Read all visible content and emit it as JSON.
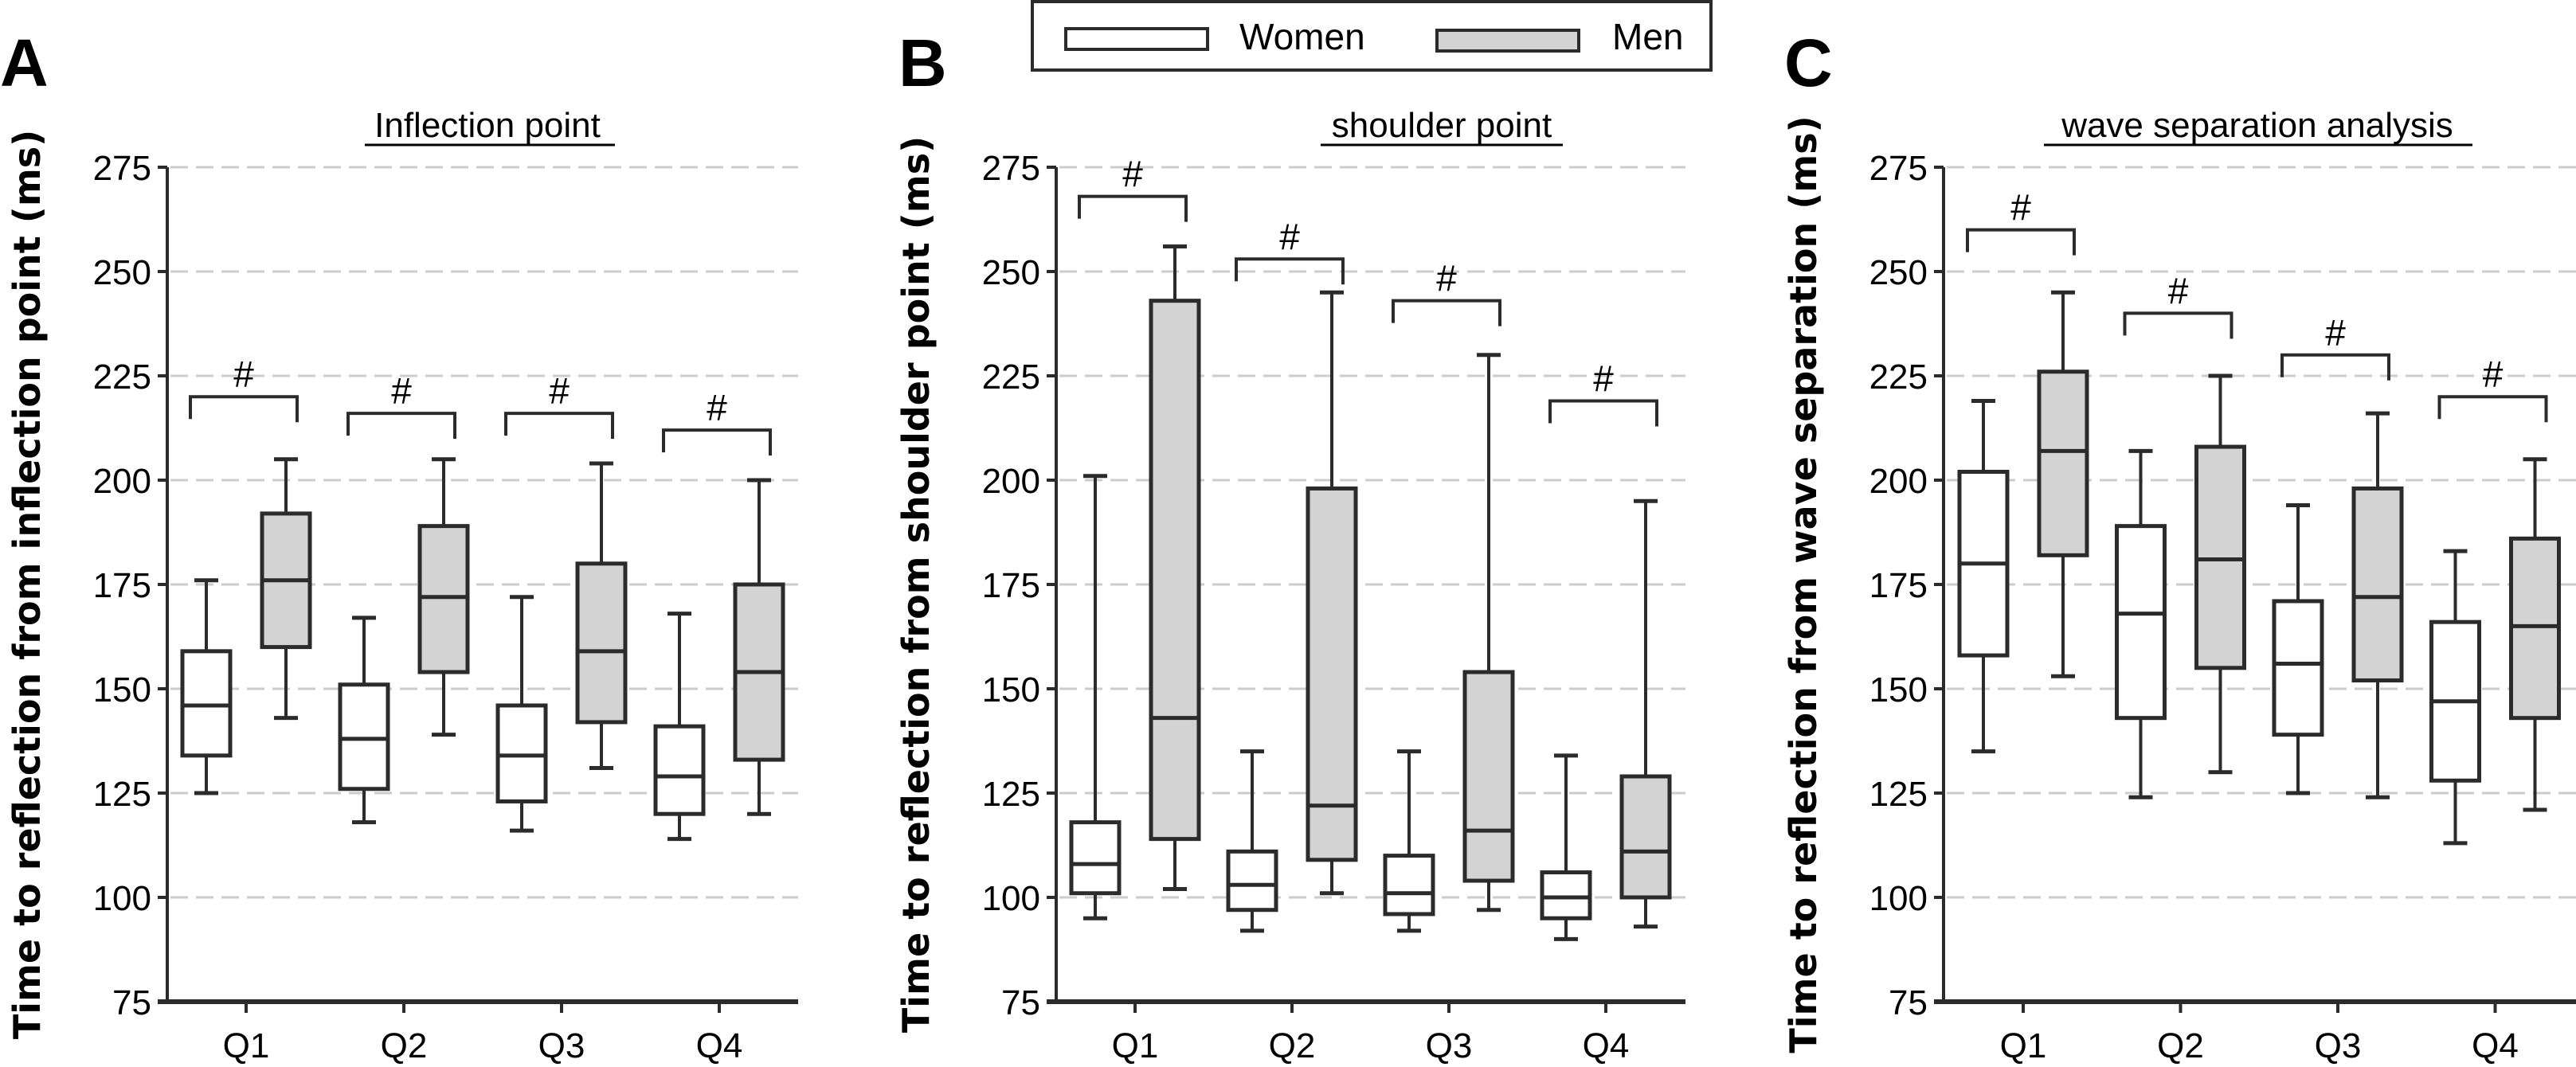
{
  "legend": {
    "items": [
      {
        "label": "Women",
        "fill": "#ffffff"
      },
      {
        "label": "Men",
        "fill": "#d3d3d3"
      }
    ]
  },
  "colors": {
    "stroke": "#2b2b2b",
    "grid": "#cccccc",
    "women": "#ffffff",
    "men": "#d3d3d3"
  },
  "chart_data": [
    {
      "type": "box",
      "panel": "A",
      "title": "Inflection point",
      "xlabel": "",
      "ylabel": "Time to reflection from inflection point (ms)",
      "ylim": [
        75,
        275
      ],
      "yticks": [
        75,
        100,
        125,
        150,
        175,
        200,
        225,
        250,
        275
      ],
      "grid": true,
      "categories": [
        "Q1",
        "Q2",
        "Q3",
        "Q4"
      ],
      "series": [
        {
          "name": "Women",
          "boxes": [
            {
              "whisker_low": 125,
              "q1": 134,
              "median": 146,
              "q3": 159,
              "whisker_high": 176
            },
            {
              "whisker_low": 118,
              "q1": 126,
              "median": 138,
              "q3": 151,
              "whisker_high": 167
            },
            {
              "whisker_low": 116,
              "q1": 123,
              "median": 134,
              "q3": 146,
              "whisker_high": 172
            },
            {
              "whisker_low": 114,
              "q1": 120,
              "median": 129,
              "q3": 141,
              "whisker_high": 168
            }
          ]
        },
        {
          "name": "Men",
          "boxes": [
            {
              "whisker_low": 143,
              "q1": 160,
              "median": 176,
              "q3": 192,
              "whisker_high": 205
            },
            {
              "whisker_low": 139,
              "q1": 154,
              "median": 172,
              "q3": 189,
              "whisker_high": 205
            },
            {
              "whisker_low": 131,
              "q1": 142,
              "median": 159,
              "q3": 180,
              "whisker_high": 204
            },
            {
              "whisker_low": 120,
              "q1": 133,
              "median": 154,
              "q3": 175,
              "whisker_high": 200
            }
          ]
        }
      ],
      "annotations": [
        {
          "category": "Q1",
          "text": "#",
          "bracket_y": 220
        },
        {
          "category": "Q2",
          "text": "#",
          "bracket_y": 216
        },
        {
          "category": "Q3",
          "text": "#",
          "bracket_y": 216
        },
        {
          "category": "Q4",
          "text": "#",
          "bracket_y": 212
        }
      ]
    },
    {
      "type": "box",
      "panel": "B",
      "title": "shoulder point",
      "xlabel": "",
      "ylabel": "Time to reflection from shoulder point (ms)",
      "ylim": [
        75,
        275
      ],
      "yticks": [
        75,
        100,
        125,
        150,
        175,
        200,
        225,
        250,
        275
      ],
      "grid": true,
      "categories": [
        "Q1",
        "Q2",
        "Q3",
        "Q4"
      ],
      "series": [
        {
          "name": "Women",
          "boxes": [
            {
              "whisker_low": 95,
              "q1": 101,
              "median": 108,
              "q3": 118,
              "whisker_high": 201
            },
            {
              "whisker_low": 92,
              "q1": 97,
              "median": 103,
              "q3": 111,
              "whisker_high": 135
            },
            {
              "whisker_low": 92,
              "q1": 96,
              "median": 101,
              "q3": 110,
              "whisker_high": 135
            },
            {
              "whisker_low": 90,
              "q1": 95,
              "median": 100,
              "q3": 106,
              "whisker_high": 134
            }
          ]
        },
        {
          "name": "Men",
          "boxes": [
            {
              "whisker_low": 102,
              "q1": 114,
              "median": 143,
              "q3": 243,
              "whisker_high": 256
            },
            {
              "whisker_low": 101,
              "q1": 109,
              "median": 122,
              "q3": 198,
              "whisker_high": 245
            },
            {
              "whisker_low": 97,
              "q1": 104,
              "median": 116,
              "q3": 154,
              "whisker_high": 230
            },
            {
              "whisker_low": 93,
              "q1": 100,
              "median": 111,
              "q3": 129,
              "whisker_high": 195
            }
          ]
        }
      ],
      "annotations": [
        {
          "category": "Q1",
          "text": "#",
          "bracket_y": 268
        },
        {
          "category": "Q2",
          "text": "#",
          "bracket_y": 253
        },
        {
          "category": "Q3",
          "text": "#",
          "bracket_y": 243
        },
        {
          "category": "Q4",
          "text": "#",
          "bracket_y": 219
        }
      ]
    },
    {
      "type": "box",
      "panel": "C",
      "title": "wave separation analysis",
      "xlabel": "",
      "ylabel": "Time to reflection from wave separation (ms)",
      "ylim": [
        75,
        275
      ],
      "yticks": [
        75,
        100,
        125,
        150,
        175,
        200,
        225,
        250,
        275
      ],
      "grid": true,
      "categories": [
        "Q1",
        "Q2",
        "Q3",
        "Q4"
      ],
      "series": [
        {
          "name": "Women",
          "boxes": [
            {
              "whisker_low": 135,
              "q1": 158,
              "median": 180,
              "q3": 202,
              "whisker_high": 219
            },
            {
              "whisker_low": 124,
              "q1": 143,
              "median": 168,
              "q3": 189,
              "whisker_high": 207
            },
            {
              "whisker_low": 125,
              "q1": 139,
              "median": 156,
              "q3": 171,
              "whisker_high": 194
            },
            {
              "whisker_low": 113,
              "q1": 128,
              "median": 147,
              "q3": 166,
              "whisker_high": 183
            }
          ]
        },
        {
          "name": "Men",
          "boxes": [
            {
              "whisker_low": 153,
              "q1": 182,
              "median": 207,
              "q3": 226,
              "whisker_high": 245
            },
            {
              "whisker_low": 130,
              "q1": 155,
              "median": 181,
              "q3": 208,
              "whisker_high": 225
            },
            {
              "whisker_low": 124,
              "q1": 152,
              "median": 172,
              "q3": 198,
              "whisker_high": 216
            },
            {
              "whisker_low": 121,
              "q1": 143,
              "median": 165,
              "q3": 186,
              "whisker_high": 205
            }
          ]
        }
      ],
      "annotations": [
        {
          "category": "Q1",
          "text": "#",
          "bracket_y": 260
        },
        {
          "category": "Q2",
          "text": "#",
          "bracket_y": 240
        },
        {
          "category": "Q3",
          "text": "#",
          "bracket_y": 230
        },
        {
          "category": "Q4",
          "text": "#",
          "bracket_y": 220
        }
      ]
    }
  ]
}
